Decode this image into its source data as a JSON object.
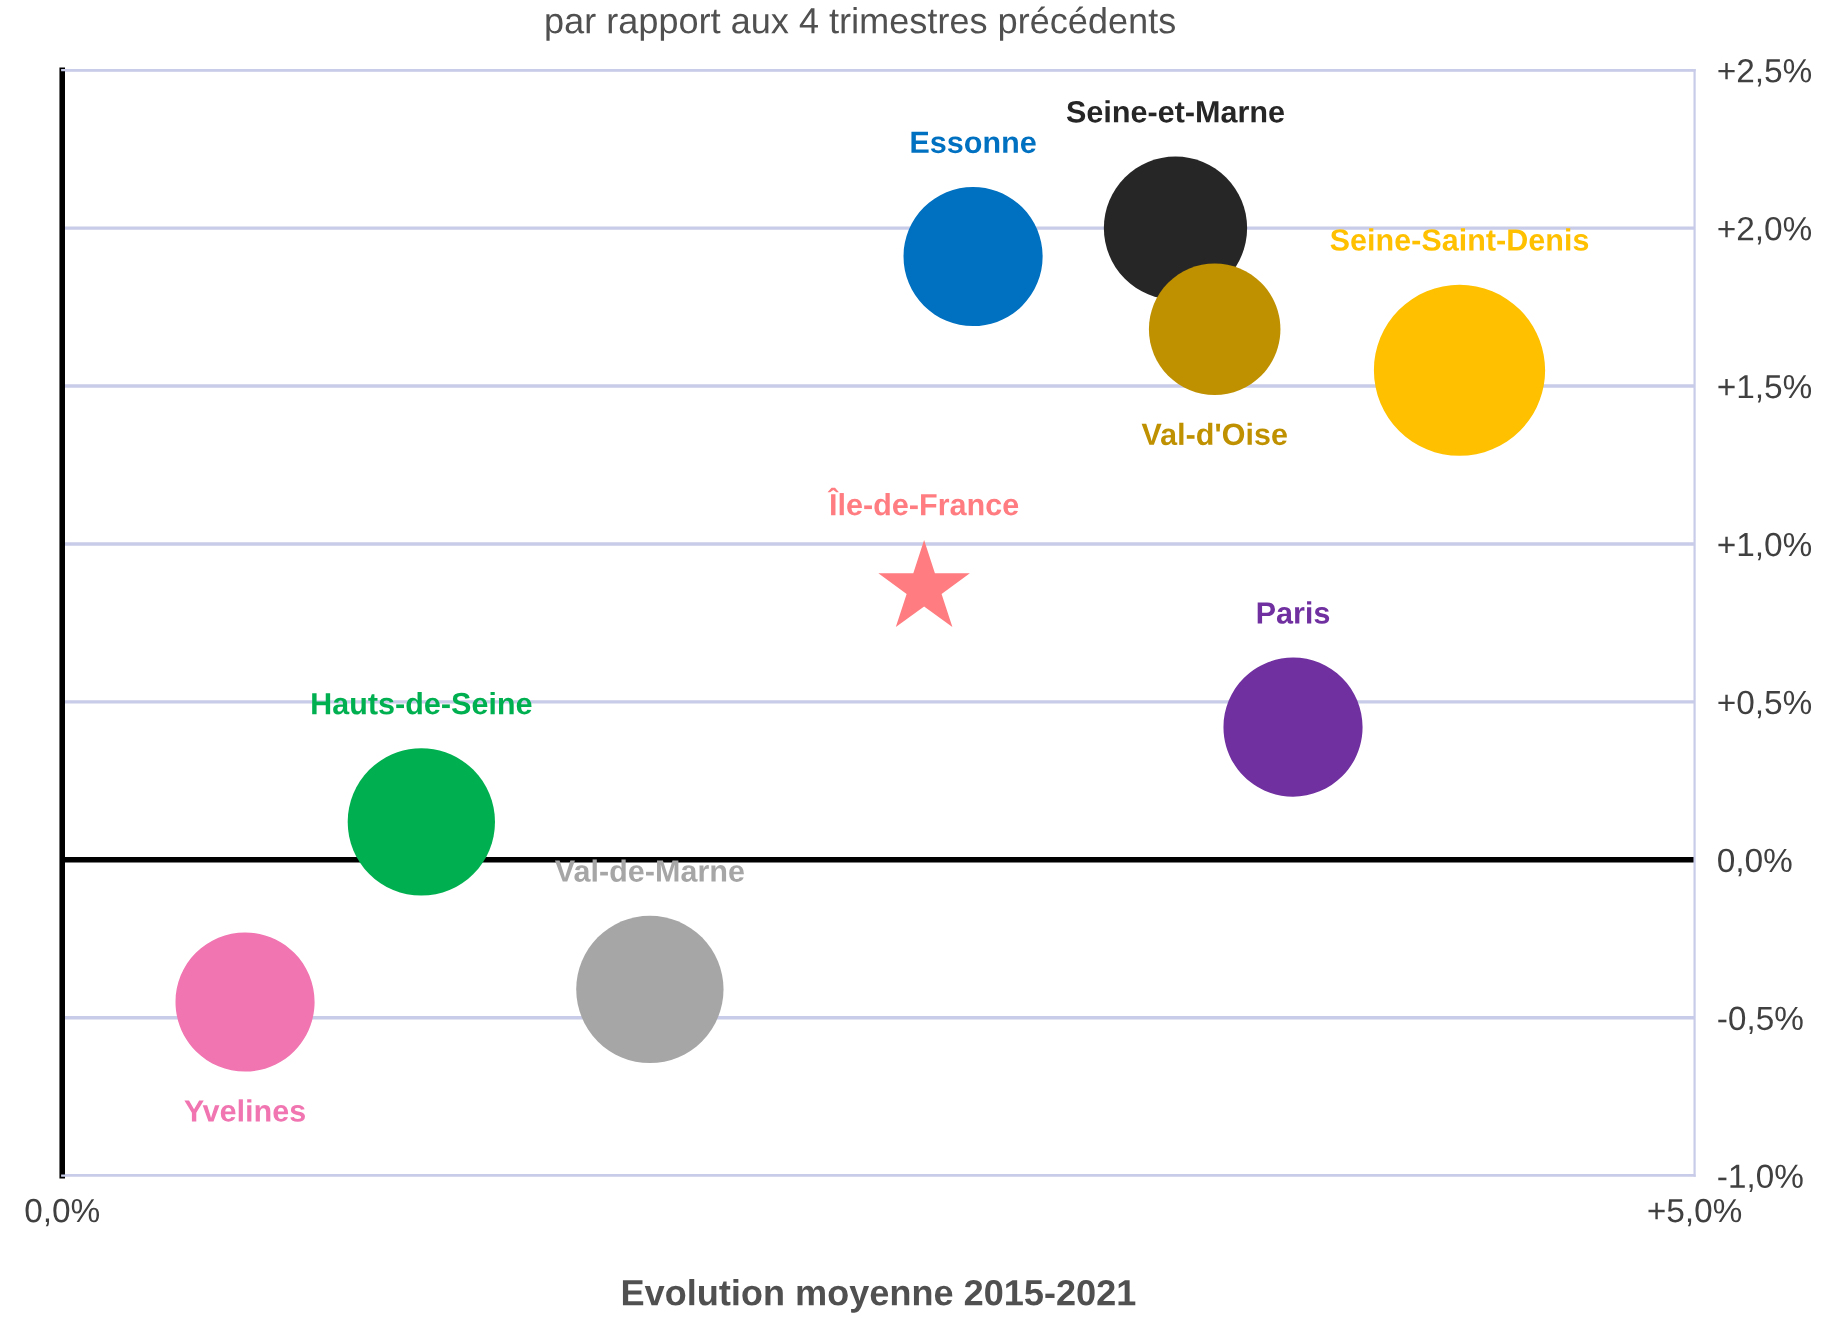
{
  "chart_data": {
    "type": "bubble",
    "subtitle": "par rapport aux 4 trimestres précédents",
    "xlabel": "Evolution moyenne 2015-2021",
    "xlim": [
      0,
      5
    ],
    "xticks": [
      {
        "value": 0,
        "label": "0,0%"
      },
      {
        "value": 5,
        "label": "+5,0%"
      }
    ],
    "ylim": [
      -1,
      2.5
    ],
    "yticks": [
      {
        "value": -1,
        "label": "-1,0%"
      },
      {
        "value": -0.5,
        "label": "-0,5%"
      },
      {
        "value": 0,
        "label": "0,0%"
      },
      {
        "value": 0.5,
        "label": "+0,5%"
      },
      {
        "value": 1,
        "label": "+1,0%"
      },
      {
        "value": 1.5,
        "label": "+1,5%"
      },
      {
        "value": 2,
        "label": "+2,0%"
      },
      {
        "value": 2.5,
        "label": "+2,5%"
      }
    ],
    "grid": "y",
    "ref_lines": [
      {
        "axis": "y",
        "value": 0,
        "color": "#000000"
      }
    ],
    "series": [
      {
        "name": "Essonne",
        "color": "#0070c0",
        "x": [
          2.79
        ],
        "values": [
          1.91
        ],
        "sizes": [
          0.66
        ]
      },
      {
        "name": "Seine-et-Marne",
        "color": "#262626",
        "x": [
          3.41
        ],
        "values": [
          2.0
        ],
        "sizes": [
          0.7
        ]
      },
      {
        "name": "Val-d'Oise",
        "color": "#bf9000",
        "x": [
          3.53
        ],
        "values": [
          1.68
        ],
        "sizes": [
          0.59
        ]
      },
      {
        "name": "Seine-Saint-Denis",
        "color": "#ffc000",
        "x": [
          4.28
        ],
        "values": [
          1.55
        ],
        "sizes": [
          1.0
        ]
      },
      {
        "name": "Île-de-France",
        "color": "#ff7c80",
        "type": "scatter",
        "marker": "star",
        "x": [
          2.64
        ],
        "values": [
          0.86
        ]
      },
      {
        "name": "Paris",
        "color": "#7030a0",
        "x": [
          3.77
        ],
        "values": [
          0.42
        ],
        "sizes": [
          0.66
        ]
      },
      {
        "name": "Hauts-de-Seine",
        "color": "#00b050",
        "x": [
          1.1
        ],
        "values": [
          0.12
        ],
        "sizes": [
          0.74
        ]
      },
      {
        "name": "Val-de-Marne",
        "color": "#a6a6a6",
        "x": [
          1.8
        ],
        "values": [
          -0.41
        ],
        "sizes": [
          0.74
        ]
      },
      {
        "name": "Yvelines",
        "color": "#f075b0",
        "x": [
          0.56
        ],
        "values": [
          -0.45
        ],
        "sizes": [
          0.66
        ]
      }
    ]
  }
}
